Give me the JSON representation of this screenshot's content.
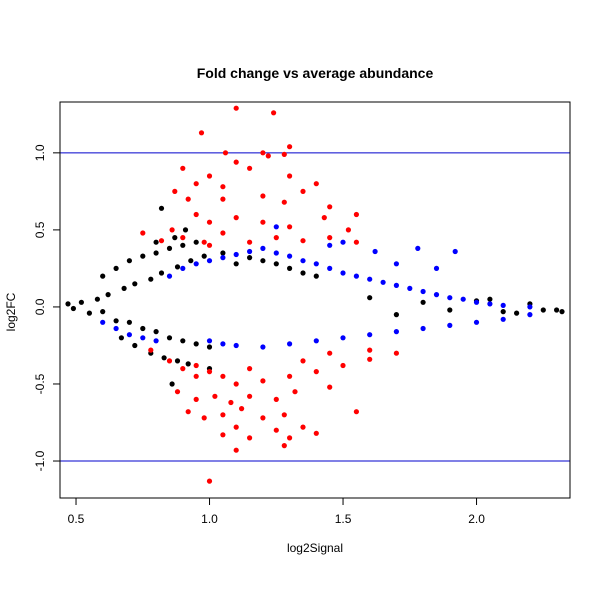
{
  "chart_data": {
    "type": "scatter",
    "title": "Fold change vs average abundance",
    "xlabel": "log2Signal",
    "ylabel": "log2FC",
    "xlim": [
      0.44,
      2.35
    ],
    "ylim": [
      -1.24,
      1.33
    ],
    "xticks": [
      {
        "value": 0.5,
        "label": "0.5"
      },
      {
        "value": 1.0,
        "label": "1.0"
      },
      {
        "value": 1.5,
        "label": "1.5"
      },
      {
        "value": 2.0,
        "label": "2.0"
      }
    ],
    "yticks": [
      {
        "value": -1.0,
        "label": "-1.0"
      },
      {
        "value": -0.5,
        "label": "-0.5"
      },
      {
        "value": 0.0,
        "label": "0.0"
      },
      {
        "value": 0.5,
        "label": "0.5"
      },
      {
        "value": 1.0,
        "label": "1.0"
      }
    ],
    "reference_lines": [
      {
        "axis": "y",
        "value": 1.0,
        "color": "#0000cc"
      },
      {
        "axis": "y",
        "value": -1.0,
        "color": "#0000cc"
      }
    ],
    "grid": false,
    "legend": "none",
    "colors": {
      "black": "#000000",
      "blue": "#0000ff",
      "red": "#ff0000"
    },
    "series": [
      {
        "color": "black",
        "points": [
          [
            0.47,
            0.02
          ],
          [
            0.49,
            -0.01
          ],
          [
            0.52,
            0.03
          ],
          [
            0.55,
            -0.04
          ],
          [
            0.58,
            0.05
          ],
          [
            0.6,
            -0.03
          ],
          [
            0.62,
            0.08
          ],
          [
            0.65,
            -0.09
          ],
          [
            0.68,
            0.12
          ],
          [
            0.7,
            -0.1
          ],
          [
            0.72,
            0.15
          ],
          [
            0.75,
            -0.14
          ],
          [
            0.78,
            0.18
          ],
          [
            0.8,
            -0.16
          ],
          [
            0.82,
            0.22
          ],
          [
            0.85,
            -0.2
          ],
          [
            0.88,
            0.26
          ],
          [
            0.9,
            -0.22
          ],
          [
            0.93,
            0.3
          ],
          [
            0.95,
            -0.24
          ],
          [
            0.98,
            0.33
          ],
          [
            1.0,
            -0.26
          ],
          [
            1.05,
            0.35
          ],
          [
            1.1,
            0.28
          ],
          [
            1.15,
            0.32
          ],
          [
            1.2,
            0.3
          ],
          [
            1.25,
            0.28
          ],
          [
            1.3,
            0.25
          ],
          [
            1.35,
            0.22
          ],
          [
            1.4,
            0.2
          ],
          [
            0.6,
            0.2
          ],
          [
            0.65,
            0.25
          ],
          [
            0.7,
            0.3
          ],
          [
            0.75,
            0.33
          ],
          [
            0.8,
            0.35
          ],
          [
            0.85,
            0.38
          ],
          [
            0.9,
            0.4
          ],
          [
            0.95,
            0.42
          ],
          [
            0.87,
            0.45
          ],
          [
            0.8,
            0.42
          ],
          [
            0.82,
            0.64
          ],
          [
            0.91,
            0.5
          ],
          [
            0.67,
            -0.2
          ],
          [
            0.72,
            -0.25
          ],
          [
            0.78,
            -0.3
          ],
          [
            0.83,
            -0.33
          ],
          [
            0.88,
            -0.35
          ],
          [
            0.92,
            -0.37
          ],
          [
            1.0,
            -0.4
          ],
          [
            0.86,
            -0.5
          ],
          [
            1.8,
            0.03
          ],
          [
            1.9,
            -0.02
          ],
          [
            2.0,
            0.04
          ],
          [
            2.1,
            -0.03
          ],
          [
            2.2,
            0.02
          ],
          [
            2.25,
            -0.02
          ],
          [
            2.3,
            -0.02
          ],
          [
            2.32,
            -0.03
          ],
          [
            1.6,
            0.06
          ],
          [
            1.7,
            -0.05
          ],
          [
            2.05,
            0.05
          ],
          [
            2.15,
            -0.04
          ]
        ]
      },
      {
        "color": "blue",
        "points": [
          [
            0.6,
            -0.1
          ],
          [
            0.65,
            -0.14
          ],
          [
            0.7,
            -0.18
          ],
          [
            0.75,
            -0.2
          ],
          [
            0.8,
            -0.22
          ],
          [
            0.85,
            0.2
          ],
          [
            0.9,
            0.25
          ],
          [
            0.95,
            0.28
          ],
          [
            1.0,
            0.3
          ],
          [
            1.05,
            0.32
          ],
          [
            1.1,
            0.34
          ],
          [
            1.15,
            0.36
          ],
          [
            1.2,
            0.38
          ],
          [
            1.25,
            0.35
          ],
          [
            1.3,
            0.33
          ],
          [
            1.35,
            0.3
          ],
          [
            1.4,
            0.28
          ],
          [
            1.45,
            0.25
          ],
          [
            1.5,
            0.22
          ],
          [
            1.55,
            0.2
          ],
          [
            1.6,
            0.18
          ],
          [
            1.65,
            0.16
          ],
          [
            1.7,
            0.14
          ],
          [
            1.75,
            0.12
          ],
          [
            1.8,
            0.1
          ],
          [
            1.85,
            0.08
          ],
          [
            1.9,
            0.06
          ],
          [
            1.95,
            0.05
          ],
          [
            2.0,
            0.03
          ],
          [
            2.05,
            0.02
          ],
          [
            2.1,
            0.01
          ],
          [
            2.2,
            0.0
          ],
          [
            1.0,
            -0.22
          ],
          [
            1.05,
            -0.24
          ],
          [
            1.1,
            -0.25
          ],
          [
            1.2,
            -0.26
          ],
          [
            1.3,
            -0.24
          ],
          [
            1.4,
            -0.22
          ],
          [
            1.5,
            -0.2
          ],
          [
            1.6,
            -0.18
          ],
          [
            1.7,
            -0.16
          ],
          [
            1.8,
            -0.14
          ],
          [
            1.9,
            -0.12
          ],
          [
            2.0,
            -0.1
          ],
          [
            2.1,
            -0.08
          ],
          [
            2.2,
            -0.05
          ],
          [
            1.25,
            0.52
          ],
          [
            1.45,
            0.4
          ],
          [
            1.5,
            0.42
          ],
          [
            1.62,
            0.36
          ],
          [
            1.78,
            0.38
          ],
          [
            1.92,
            0.36
          ],
          [
            1.7,
            0.28
          ],
          [
            1.85,
            0.25
          ]
        ]
      },
      {
        "color": "red",
        "points": [
          [
            1.1,
            1.29
          ],
          [
            1.24,
            1.26
          ],
          [
            0.97,
            1.13
          ],
          [
            1.3,
            1.04
          ],
          [
            1.06,
            1.0
          ],
          [
            1.2,
            1.0
          ],
          [
            1.22,
            0.98
          ],
          [
            1.28,
            0.99
          ],
          [
            1.1,
            0.94
          ],
          [
            0.9,
            0.9
          ],
          [
            1.0,
            0.85
          ],
          [
            1.15,
            0.9
          ],
          [
            1.3,
            0.85
          ],
          [
            1.4,
            0.8
          ],
          [
            0.95,
            0.8
          ],
          [
            1.05,
            0.78
          ],
          [
            1.35,
            0.75
          ],
          [
            0.87,
            0.75
          ],
          [
            0.92,
            0.7
          ],
          [
            1.05,
            0.7
          ],
          [
            1.2,
            0.72
          ],
          [
            1.28,
            0.68
          ],
          [
            1.45,
            0.65
          ],
          [
            1.55,
            0.6
          ],
          [
            0.95,
            0.6
          ],
          [
            1.0,
            0.55
          ],
          [
            1.1,
            0.58
          ],
          [
            1.2,
            0.55
          ],
          [
            1.3,
            0.52
          ],
          [
            1.43,
            0.58
          ],
          [
            1.52,
            0.5
          ],
          [
            0.86,
            0.5
          ],
          [
            0.9,
            0.45
          ],
          [
            0.98,
            0.42
          ],
          [
            1.05,
            0.48
          ],
          [
            1.15,
            0.42
          ],
          [
            1.25,
            0.45
          ],
          [
            1.35,
            0.43
          ],
          [
            1.45,
            0.45
          ],
          [
            1.55,
            0.42
          ],
          [
            0.75,
            0.48
          ],
          [
            0.82,
            0.43
          ],
          [
            1.0,
            0.4
          ],
          [
            0.78,
            -0.28
          ],
          [
            0.85,
            -0.35
          ],
          [
            0.9,
            -0.4
          ],
          [
            0.95,
            -0.38
          ],
          [
            1.0,
            -0.42
          ],
          [
            1.05,
            -0.45
          ],
          [
            1.1,
            -0.5
          ],
          [
            1.2,
            -0.48
          ],
          [
            1.3,
            -0.45
          ],
          [
            1.4,
            -0.42
          ],
          [
            1.5,
            -0.38
          ],
          [
            1.6,
            -0.34
          ],
          [
            1.7,
            -0.3
          ],
          [
            0.88,
            -0.55
          ],
          [
            0.95,
            -0.6
          ],
          [
            1.02,
            -0.58
          ],
          [
            1.08,
            -0.62
          ],
          [
            1.15,
            -0.58
          ],
          [
            1.25,
            -0.6
          ],
          [
            1.32,
            -0.55
          ],
          [
            1.45,
            -0.52
          ],
          [
            1.55,
            -0.68
          ],
          [
            0.92,
            -0.68
          ],
          [
            1.05,
            -0.7
          ],
          [
            1.2,
            -0.72
          ],
          [
            1.28,
            -0.7
          ],
          [
            0.98,
            -0.72
          ],
          [
            1.1,
            -0.78
          ],
          [
            1.25,
            -0.8
          ],
          [
            1.35,
            -0.78
          ],
          [
            1.05,
            -0.83
          ],
          [
            1.15,
            -0.85
          ],
          [
            1.3,
            -0.85
          ],
          [
            1.1,
            -0.93
          ],
          [
            1.28,
            -0.9
          ],
          [
            1.0,
            -1.13
          ],
          [
            0.95,
            -0.45
          ],
          [
            1.15,
            -0.4
          ],
          [
            1.35,
            -0.35
          ],
          [
            1.45,
            -0.3
          ],
          [
            1.6,
            -0.28
          ],
          [
            1.12,
            -0.66
          ],
          [
            1.4,
            -0.82
          ]
        ]
      }
    ]
  }
}
